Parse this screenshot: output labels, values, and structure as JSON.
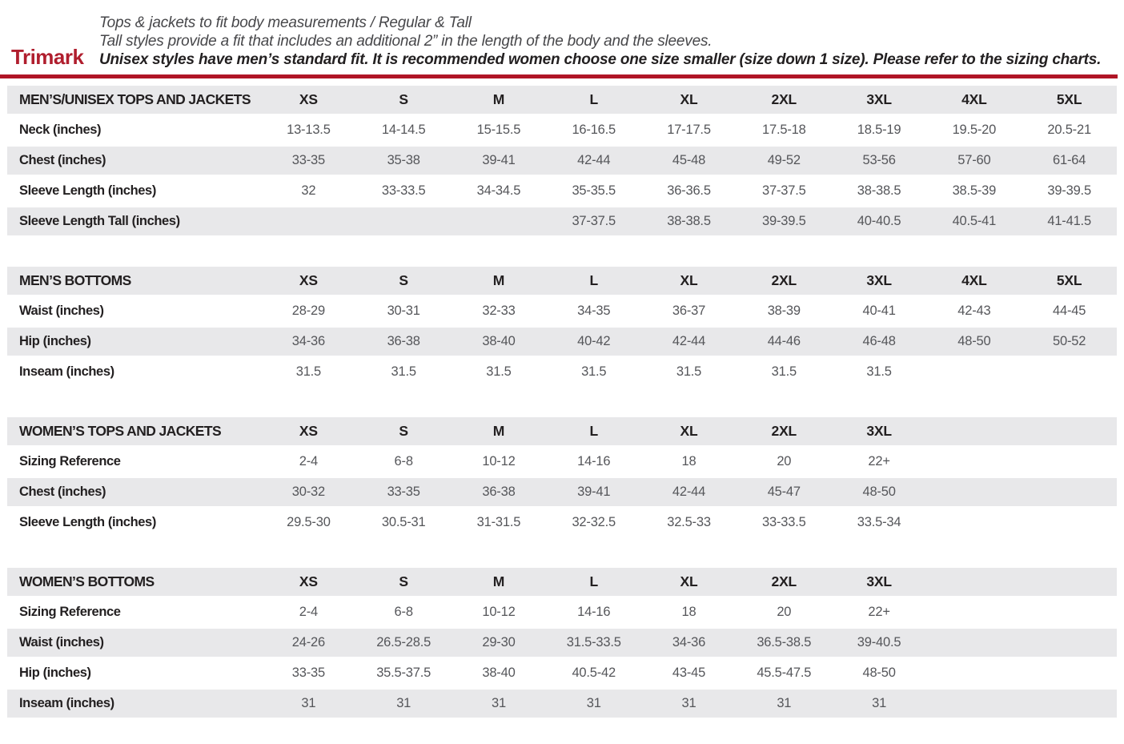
{
  "colors": {
    "accent_red": "#b01e2e",
    "rule_red": "#b01526",
    "band_gray": "#e8e8ea",
    "label_dark": "#232021",
    "value_gray": "#55565a"
  },
  "header": {
    "brand": "Trimark",
    "line1": "Tops & jackets to fit body measurements / Regular & Tall",
    "line2": "Tall styles provide a fit that includes an additional 2” in the length of the body and the sleeves.",
    "line3": "Unisex styles have men’s standard fit. It is recommended women choose one size smaller (size down 1 size).  Please refer to the sizing charts."
  },
  "tables": [
    {
      "title": "MEN’S/UNISEX TOPS AND JACKETS",
      "sizes": [
        "XS",
        "S",
        "M",
        "L",
        "XL",
        "2XL",
        "3XL",
        "4XL",
        "5XL"
      ],
      "rows": [
        {
          "label": "Neck (inches)",
          "values": [
            "13-13.5",
            "14-14.5",
            "15-15.5",
            "16-16.5",
            "17-17.5",
            "17.5-18",
            "18.5-19",
            "19.5-20",
            "20.5-21"
          ]
        },
        {
          "label": "Chest (inches)",
          "values": [
            "33-35",
            "35-38",
            "39-41",
            "42-44",
            "45-48",
            "49-52",
            "53-56",
            "57-60",
            "61-64"
          ]
        },
        {
          "label": "Sleeve Length (inches)",
          "values": [
            "32",
            "33-33.5",
            "34-34.5",
            "35-35.5",
            "36-36.5",
            "37-37.5",
            "38-38.5",
            "38.5-39",
            "39-39.5"
          ]
        },
        {
          "label": "Sleeve Length Tall (inches)",
          "values": [
            "",
            "",
            "",
            "37-37.5",
            "38-38.5",
            "39-39.5",
            "40-40.5",
            "40.5-41",
            "41-41.5"
          ]
        }
      ]
    },
    {
      "title": "MEN’S BOTTOMS",
      "sizes": [
        "XS",
        "S",
        "M",
        "L",
        "XL",
        "2XL",
        "3XL",
        "4XL",
        "5XL"
      ],
      "rows": [
        {
          "label": "Waist (inches)",
          "values": [
            "28-29",
            "30-31",
            "32-33",
            "34-35",
            "36-37",
            "38-39",
            "40-41",
            "42-43",
            "44-45"
          ]
        },
        {
          "label": "Hip (inches)",
          "values": [
            "34-36",
            "36-38",
            "38-40",
            "40-42",
            "42-44",
            "44-46",
            "46-48",
            "48-50",
            "50-52"
          ]
        },
        {
          "label": "Inseam (inches)",
          "values": [
            "31.5",
            "31.5",
            "31.5",
            "31.5",
            "31.5",
            "31.5",
            "31.5",
            "",
            ""
          ]
        }
      ]
    },
    {
      "title": "WOMEN’S TOPS AND JACKETS",
      "sizes": [
        "XS",
        "S",
        "M",
        "L",
        "XL",
        "2XL",
        "3XL"
      ],
      "rows": [
        {
          "label": "Sizing Reference",
          "values": [
            "2-4",
            "6-8",
            "10-12",
            "14-16",
            "18",
            "20",
            "22+"
          ]
        },
        {
          "label": "Chest (inches)",
          "values": [
            "30-32",
            "33-35",
            "36-38",
            "39-41",
            "42-44",
            "45-47",
            "48-50"
          ]
        },
        {
          "label": "Sleeve Length (inches)",
          "values": [
            "29.5-30",
            "30.5-31",
            "31-31.5",
            "32-32.5",
            "32.5-33",
            "33-33.5",
            "33.5-34"
          ]
        }
      ]
    },
    {
      "title": "WOMEN’S BOTTOMS",
      "sizes": [
        "XS",
        "S",
        "M",
        "L",
        "XL",
        "2XL",
        "3XL"
      ],
      "rows": [
        {
          "label": "Sizing Reference",
          "values": [
            "2-4",
            "6-8",
            "10-12",
            "14-16",
            "18",
            "20",
            "22+"
          ]
        },
        {
          "label": "Waist (inches)",
          "values": [
            "24-26",
            "26.5-28.5",
            "29-30",
            "31.5-33.5",
            "34-36",
            "36.5-38.5",
            "39-40.5"
          ]
        },
        {
          "label": "Hip (inches)",
          "values": [
            "33-35",
            "35.5-37.5",
            "38-40",
            "40.5-42",
            "43-45",
            "45.5-47.5",
            "48-50"
          ]
        },
        {
          "label": "Inseam (inches)",
          "values": [
            "31",
            "31",
            "31",
            "31",
            "31",
            "31",
            "31"
          ]
        }
      ]
    }
  ]
}
